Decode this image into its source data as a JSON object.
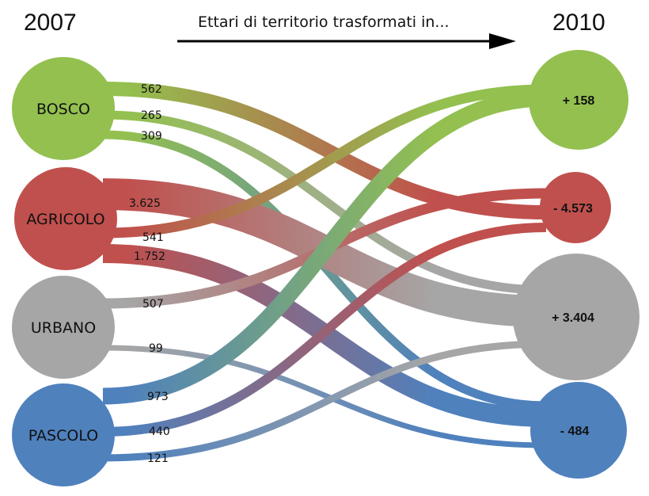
{
  "header": {
    "year_start": "2007",
    "year_end": "2010",
    "caption": "Ettari di territorio trasformati in..."
  },
  "colors": {
    "bosco": "#93c04f",
    "agricolo": "#c0504d",
    "urbano": "#a6a6a6",
    "pascolo": "#4f81bd"
  },
  "nodes_2007": [
    {
      "id": "bosco",
      "label": "BOSCO"
    },
    {
      "id": "agricolo",
      "label": "AGRICOLO"
    },
    {
      "id": "urbano",
      "label": "URBANO"
    },
    {
      "id": "pascolo",
      "label": "PASCOLO"
    }
  ],
  "nodes_2010": [
    {
      "id": "bosco",
      "value": "+ 158"
    },
    {
      "id": "agricolo",
      "value": "- 4.573"
    },
    {
      "id": "urbano",
      "value": "+ 3.404"
    },
    {
      "id": "pascolo",
      "value": "- 484"
    }
  ],
  "flows": [
    {
      "from": "bosco",
      "to": "agricolo",
      "value": 562,
      "label": "562"
    },
    {
      "from": "bosco",
      "to": "urbano",
      "value": 265,
      "label": "265"
    },
    {
      "from": "bosco",
      "to": "pascolo",
      "value": 309,
      "label": "309"
    },
    {
      "from": "agricolo",
      "to": "urbano",
      "value": 3625,
      "label": "3.625"
    },
    {
      "from": "agricolo",
      "to": "bosco",
      "value": 541,
      "label": "541"
    },
    {
      "from": "agricolo",
      "to": "pascolo",
      "value": 1752,
      "label": "1.752"
    },
    {
      "from": "urbano",
      "to": "agricolo",
      "value": 507,
      "label": "507"
    },
    {
      "from": "urbano",
      "to": "pascolo",
      "value": 99,
      "label": "99"
    },
    {
      "from": "pascolo",
      "to": "bosco",
      "value": 973,
      "label": "973"
    },
    {
      "from": "pascolo",
      "to": "agricolo",
      "value": 440,
      "label": "440"
    },
    {
      "from": "pascolo",
      "to": "urbano",
      "value": 121,
      "label": "121"
    }
  ]
}
